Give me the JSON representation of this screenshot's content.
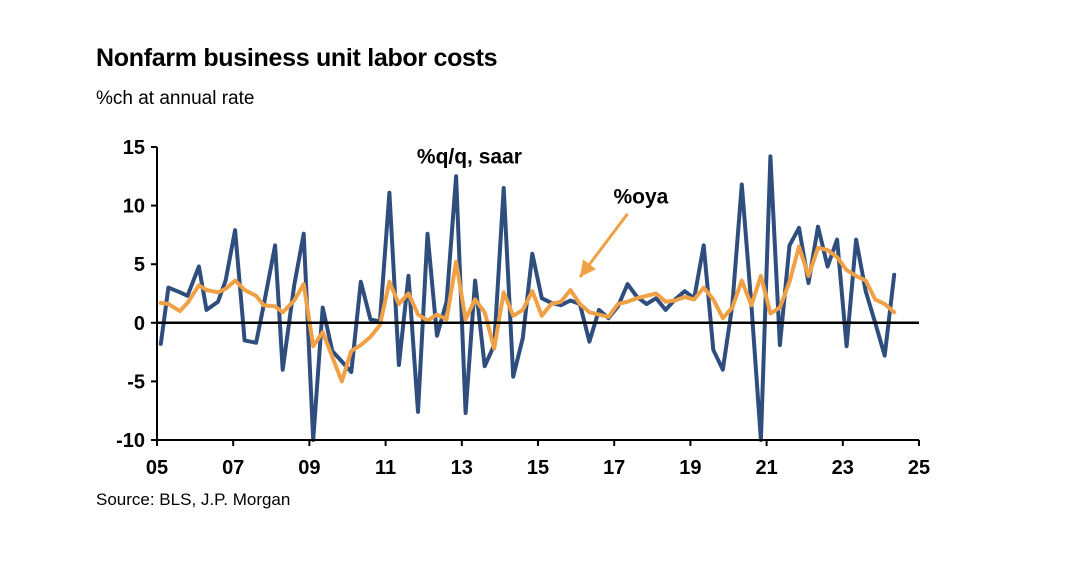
{
  "chart_data": {
    "type": "line",
    "title": "Nonfarm business unit labor costs",
    "subtitle": "%ch at annual rate",
    "source": "Source: BLS, J.P. Morgan",
    "x_ticks": [
      "05",
      "07",
      "09",
      "11",
      "13",
      "15",
      "17",
      "19",
      "21",
      "23",
      "25"
    ],
    "y_ticks": [
      "15",
      "10",
      "5",
      "0",
      "-5",
      "-10"
    ],
    "xlim": [
      2005,
      2025
    ],
    "ylim": [
      -10,
      15
    ],
    "grid": false,
    "colors": {
      "qq": "#2f4e7e",
      "oya": "#f0a045",
      "zero_line": "#000000"
    },
    "annotations": [
      {
        "text": "%q/q, saar",
        "x": 2013.2,
        "y": 13.6
      },
      {
        "text": "%oya",
        "x": 2017.7,
        "y": 10.2
      }
    ],
    "series": [
      {
        "name": "%q/q, saar",
        "points": [
          [
            2005.1,
            -1.8
          ],
          [
            2005.3,
            3.0
          ],
          [
            2005.6,
            2.6
          ],
          [
            2005.8,
            2.3
          ],
          [
            2006.1,
            4.8
          ],
          [
            2006.3,
            1.1
          ],
          [
            2006.6,
            1.8
          ],
          [
            2006.8,
            3.6
          ],
          [
            2007.05,
            7.9
          ],
          [
            2007.3,
            -1.5
          ],
          [
            2007.6,
            -1.7
          ],
          [
            2007.8,
            1.5
          ],
          [
            2008.1,
            6.6
          ],
          [
            2008.3,
            -4.0
          ],
          [
            2008.6,
            3.2
          ],
          [
            2008.85,
            7.6
          ],
          [
            2009.1,
            -10.0
          ],
          [
            2009.35,
            1.3
          ],
          [
            2009.6,
            -2.4
          ],
          [
            2009.85,
            -3.3
          ],
          [
            2010.1,
            -4.2
          ],
          [
            2010.35,
            3.5
          ],
          [
            2010.6,
            0.3
          ],
          [
            2010.85,
            0.1
          ],
          [
            2011.1,
            11.1
          ],
          [
            2011.35,
            -3.6
          ],
          [
            2011.6,
            4.0
          ],
          [
            2011.85,
            -7.6
          ],
          [
            2012.1,
            7.6
          ],
          [
            2012.35,
            -1.1
          ],
          [
            2012.6,
            1.8
          ],
          [
            2012.85,
            12.5
          ],
          [
            2013.1,
            -7.7
          ],
          [
            2013.35,
            3.6
          ],
          [
            2013.6,
            -3.7
          ],
          [
            2013.85,
            -1.9
          ],
          [
            2014.1,
            11.5
          ],
          [
            2014.35,
            -4.6
          ],
          [
            2014.6,
            -1.3
          ],
          [
            2014.85,
            5.9
          ],
          [
            2015.1,
            2.1
          ],
          [
            2015.35,
            1.7
          ],
          [
            2015.6,
            1.5
          ],
          [
            2015.85,
            1.9
          ],
          [
            2016.1,
            1.6
          ],
          [
            2016.35,
            -1.6
          ],
          [
            2016.6,
            1.1
          ],
          [
            2016.85,
            0.4
          ],
          [
            2017.1,
            1.4
          ],
          [
            2017.35,
            3.3
          ],
          [
            2017.6,
            2.2
          ],
          [
            2017.85,
            1.6
          ],
          [
            2018.1,
            2.1
          ],
          [
            2018.35,
            1.1
          ],
          [
            2018.6,
            2.0
          ],
          [
            2018.85,
            2.7
          ],
          [
            2019.1,
            2.1
          ],
          [
            2019.35,
            6.6
          ],
          [
            2019.6,
            -2.3
          ],
          [
            2019.85,
            -4.0
          ],
          [
            2020.1,
            1.5
          ],
          [
            2020.35,
            11.8
          ],
          [
            2020.6,
            1.5
          ],
          [
            2020.85,
            -10.0
          ],
          [
            2021.1,
            14.2
          ],
          [
            2021.35,
            -1.9
          ],
          [
            2021.6,
            6.6
          ],
          [
            2021.85,
            8.1
          ],
          [
            2022.1,
            3.4
          ],
          [
            2022.35,
            8.2
          ],
          [
            2022.6,
            4.8
          ],
          [
            2022.85,
            7.1
          ],
          [
            2023.1,
            -2.0
          ],
          [
            2023.35,
            7.1
          ],
          [
            2023.6,
            2.7
          ],
          [
            2023.85,
            0.0
          ],
          [
            2024.1,
            -2.8
          ],
          [
            2024.35,
            4.1
          ]
        ]
      },
      {
        "name": "%oya",
        "points": [
          [
            2005.1,
            1.7
          ],
          [
            2005.3,
            1.6
          ],
          [
            2005.6,
            1.0
          ],
          [
            2005.8,
            1.7
          ],
          [
            2006.1,
            3.2
          ],
          [
            2006.3,
            2.8
          ],
          [
            2006.6,
            2.6
          ],
          [
            2006.8,
            2.9
          ],
          [
            2007.05,
            3.6
          ],
          [
            2007.3,
            2.8
          ],
          [
            2007.6,
            2.3
          ],
          [
            2007.8,
            1.5
          ],
          [
            2008.1,
            1.4
          ],
          [
            2008.3,
            0.9
          ],
          [
            2008.6,
            1.9
          ],
          [
            2008.85,
            3.3
          ],
          [
            2009.1,
            -2.0
          ],
          [
            2009.35,
            -0.8
          ],
          [
            2009.6,
            -2.9
          ],
          [
            2009.85,
            -5.0
          ],
          [
            2010.1,
            -2.4
          ],
          [
            2010.35,
            -1.9
          ],
          [
            2010.6,
            -1.2
          ],
          [
            2010.85,
            -0.2
          ],
          [
            2011.1,
            3.5
          ],
          [
            2011.35,
            1.6
          ],
          [
            2011.6,
            2.5
          ],
          [
            2011.85,
            0.7
          ],
          [
            2012.1,
            0.2
          ],
          [
            2012.35,
            0.7
          ],
          [
            2012.6,
            0.3
          ],
          [
            2012.85,
            5.2
          ],
          [
            2013.1,
            0.3
          ],
          [
            2013.35,
            2.0
          ],
          [
            2013.6,
            0.9
          ],
          [
            2013.85,
            -2.2
          ],
          [
            2014.1,
            2.6
          ],
          [
            2014.35,
            0.6
          ],
          [
            2014.6,
            1.1
          ],
          [
            2014.85,
            2.7
          ],
          [
            2015.1,
            0.6
          ],
          [
            2015.35,
            1.6
          ],
          [
            2015.6,
            1.8
          ],
          [
            2015.85,
            2.8
          ],
          [
            2016.1,
            1.6
          ],
          [
            2016.35,
            0.9
          ],
          [
            2016.6,
            0.7
          ],
          [
            2016.85,
            0.5
          ],
          [
            2017.1,
            1.6
          ],
          [
            2017.35,
            1.8
          ],
          [
            2017.6,
            2.1
          ],
          [
            2017.85,
            2.3
          ],
          [
            2018.1,
            2.5
          ],
          [
            2018.35,
            1.8
          ],
          [
            2018.6,
            1.9
          ],
          [
            2018.85,
            2.2
          ],
          [
            2019.1,
            2.0
          ],
          [
            2019.35,
            3.0
          ],
          [
            2019.6,
            2.0
          ],
          [
            2019.85,
            0.4
          ],
          [
            2020.1,
            1.3
          ],
          [
            2020.35,
            3.6
          ],
          [
            2020.6,
            1.5
          ],
          [
            2020.85,
            4.0
          ],
          [
            2021.1,
            0.8
          ],
          [
            2021.35,
            1.3
          ],
          [
            2021.6,
            3.5
          ],
          [
            2021.85,
            6.5
          ],
          [
            2022.1,
            4.0
          ],
          [
            2022.35,
            6.4
          ],
          [
            2022.6,
            6.2
          ],
          [
            2022.85,
            5.6
          ],
          [
            2023.1,
            4.5
          ],
          [
            2023.35,
            4.0
          ],
          [
            2023.6,
            3.6
          ],
          [
            2023.85,
            2.0
          ],
          [
            2024.1,
            1.6
          ],
          [
            2024.35,
            0.9
          ]
        ]
      }
    ]
  }
}
